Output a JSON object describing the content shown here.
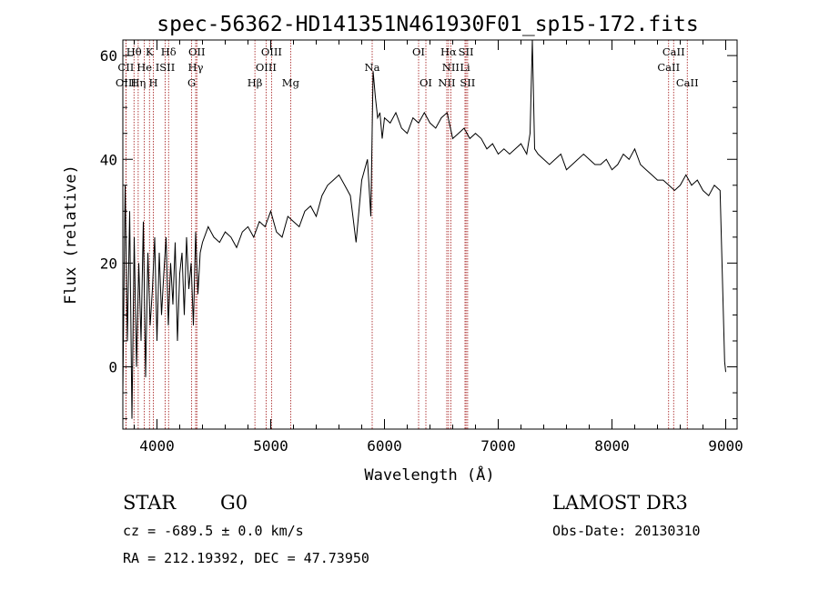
{
  "chart_data": {
    "type": "line",
    "title": "spec-56362-HD141351N461930F01_sp15-172.fits",
    "xlabel": "Wavelength (Å)",
    "ylabel": "Flux (relative)",
    "xlim": [
      3700,
      9100
    ],
    "ylim": [
      -12,
      63
    ],
    "xticks": [
      4000,
      5000,
      6000,
      7000,
      8000,
      9000
    ],
    "yticks": [
      0,
      20,
      40,
      60
    ],
    "x": [
      3700,
      3720,
      3740,
      3760,
      3780,
      3800,
      3820,
      3840,
      3860,
      3880,
      3900,
      3920,
      3940,
      3960,
      3980,
      4000,
      4020,
      4040,
      4060,
      4080,
      4100,
      4120,
      4140,
      4160,
      4180,
      4200,
      4220,
      4240,
      4260,
      4280,
      4300,
      4320,
      4340,
      4360,
      4380,
      4400,
      4450,
      4500,
      4550,
      4600,
      4650,
      4700,
      4750,
      4800,
      4850,
      4900,
      4950,
      5000,
      5050,
      5100,
      5150,
      5200,
      5250,
      5300,
      5350,
      5400,
      5450,
      5500,
      5550,
      5600,
      5650,
      5700,
      5750,
      5800,
      5850,
      5880,
      5900,
      5920,
      5940,
      5960,
      5980,
      6000,
      6050,
      6100,
      6150,
      6200,
      6250,
      6300,
      6350,
      6400,
      6450,
      6500,
      6550,
      6600,
      6650,
      6700,
      6750,
      6800,
      6850,
      6900,
      6950,
      7000,
      7050,
      7100,
      7150,
      7200,
      7250,
      7280,
      7300,
      7320,
      7350,
      7400,
      7450,
      7500,
      7550,
      7600,
      7650,
      7700,
      7750,
      7800,
      7850,
      7900,
      7950,
      8000,
      8050,
      8100,
      8150,
      8200,
      8250,
      8300,
      8350,
      8400,
      8450,
      8500,
      8550,
      8600,
      8650,
      8700,
      8750,
      8800,
      8850,
      8900,
      8950,
      8990,
      9000
    ],
    "values": [
      -5,
      35,
      5,
      30,
      -10,
      25,
      0,
      20,
      5,
      28,
      -2,
      22,
      8,
      15,
      25,
      5,
      22,
      10,
      18,
      25,
      8,
      20,
      12,
      24,
      5,
      18,
      22,
      10,
      25,
      15,
      20,
      8,
      26,
      14,
      22,
      24,
      27,
      25,
      24,
      26,
      25,
      23,
      26,
      27,
      25,
      28,
      27,
      30,
      26,
      25,
      29,
      28,
      27,
      30,
      31,
      29,
      33,
      35,
      36,
      37,
      35,
      33,
      24,
      36,
      40,
      29,
      57,
      52,
      48,
      49,
      44,
      48,
      47,
      49,
      46,
      45,
      48,
      47,
      49,
      47,
      46,
      48,
      49,
      44,
      45,
      46,
      44,
      45,
      44,
      42,
      43,
      41,
      42,
      41,
      42,
      43,
      41,
      45,
      63,
      42,
      41,
      40,
      39,
      40,
      41,
      38,
      39,
      40,
      41,
      40,
      39,
      39,
      40,
      38,
      39,
      41,
      40,
      42,
      39,
      38,
      37,
      36,
      36,
      35,
      34,
      35,
      37,
      35,
      36,
      34,
      33,
      35,
      34,
      1,
      -1
    ],
    "spectral_lines": [
      {
        "label": "Hθ",
        "wavelength": 3798,
        "row": 1
      },
      {
        "label": "K",
        "wavelength": 3934,
        "row": 1
      },
      {
        "label": "Hδ",
        "wavelength": 4102,
        "row": 1
      },
      {
        "label": "OII",
        "wavelength": 4350,
        "row": 1
      },
      {
        "label": "OIII",
        "wavelength": 5007,
        "row": 1
      },
      {
        "label": "OI",
        "wavelength": 6300,
        "row": 1
      },
      {
        "label": "Hα",
        "wavelength": 6563,
        "row": 1
      },
      {
        "label": "SII",
        "wavelength": 6717,
        "row": 1
      },
      {
        "label": "CaII",
        "wavelength": 8542,
        "row": 1
      },
      {
        "label": "CII",
        "wavelength": 3727,
        "row": 2
      },
      {
        "label": "He",
        "wavelength": 3889,
        "row": 2
      },
      {
        "label": "ISII",
        "wavelength": 4072,
        "row": 2
      },
      {
        "label": "Hγ",
        "wavelength": 4340,
        "row": 2
      },
      {
        "label": "OIII",
        "wavelength": 4959,
        "row": 2
      },
      {
        "label": "Na",
        "wavelength": 5892,
        "row": 2
      },
      {
        "label": "NII",
        "wavelength": 6583,
        "row": 2
      },
      {
        "label": "Li",
        "wavelength": 6708,
        "row": 2
      },
      {
        "label": "CaII",
        "wavelength": 8498,
        "row": 2
      },
      {
        "label": "OIII",
        "wavelength": 3727,
        "row": 3
      },
      {
        "label": "Hη",
        "wavelength": 3835,
        "row": 3
      },
      {
        "label": "H",
        "wavelength": 3968,
        "row": 3
      },
      {
        "label": "G",
        "wavelength": 4305,
        "row": 3
      },
      {
        "label": "Hβ",
        "wavelength": 4861,
        "row": 3
      },
      {
        "label": "Mg",
        "wavelength": 5175,
        "row": 3
      },
      {
        "label": "OI",
        "wavelength": 6364,
        "row": 3
      },
      {
        "label": "NII",
        "wavelength": 6548,
        "row": 3
      },
      {
        "label": "SII",
        "wavelength": 6731,
        "row": 3
      },
      {
        "label": "CaII",
        "wavelength": 8662,
        "row": 3
      }
    ],
    "grid": false,
    "legend": "none",
    "line_color": "#000000",
    "marker_color": "#a01010"
  },
  "info": {
    "object_type": "STAR",
    "subclass": "G0",
    "survey": "LAMOST DR3",
    "redshift": "cz = -689.5 ± 0.0 km/s",
    "obs_date": "Obs-Date: 20130310",
    "coords": "RA = 212.19392, DEC =  47.73950"
  }
}
